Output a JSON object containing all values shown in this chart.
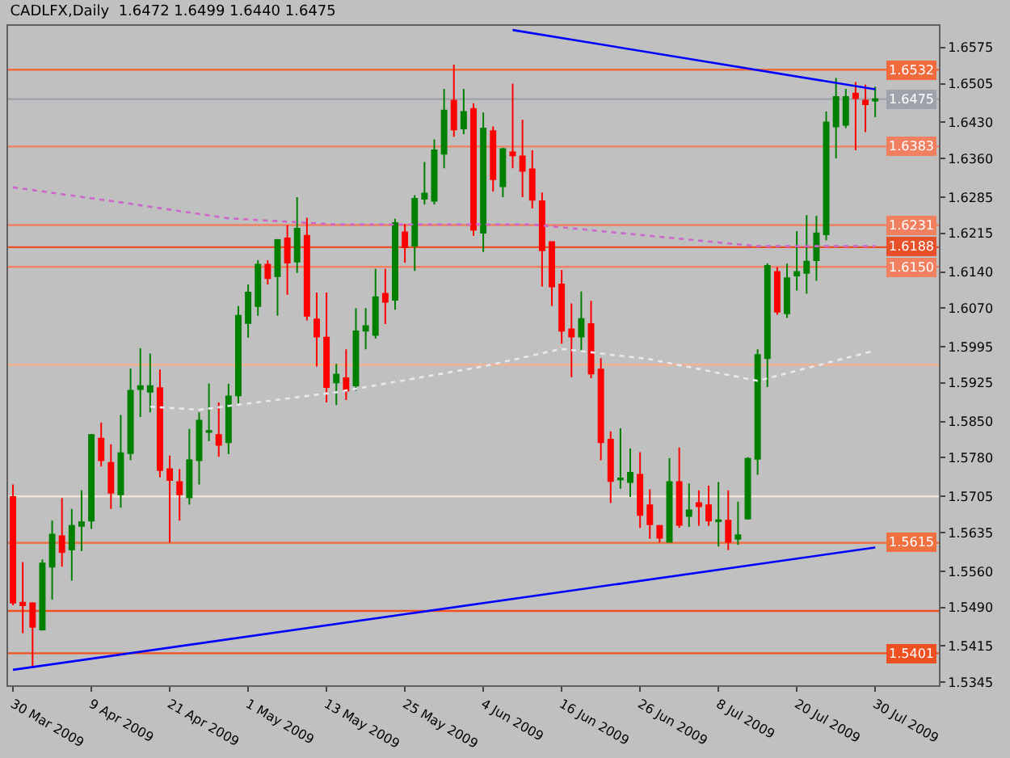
{
  "chart_data": {
    "type": "candlestick",
    "title": "CADLFX,Daily  1.6472 1.6499 1.6440 1.6475",
    "categories": [
      "30 Mar 2009",
      null,
      null,
      null,
      null,
      null,
      null,
      null,
      "9 Apr 2009",
      null,
      null,
      null,
      null,
      null,
      null,
      null,
      "21 Apr 2009",
      null,
      null,
      null,
      null,
      null,
      null,
      null,
      "1 May 2009",
      null,
      null,
      null,
      null,
      null,
      null,
      null,
      "13 May 2009",
      null,
      null,
      null,
      null,
      null,
      null,
      null,
      "25 May 2009",
      null,
      null,
      null,
      null,
      null,
      null,
      null,
      "4 Jun 2009",
      null,
      null,
      null,
      null,
      null,
      null,
      null,
      "16 Jun 2009",
      null,
      null,
      null,
      null,
      null,
      null,
      null,
      "26 Jun 2009",
      null,
      null,
      null,
      null,
      null,
      null,
      null,
      "8 Jul 2009",
      null,
      null,
      null,
      null,
      null,
      null,
      null,
      "20 Jul 2009",
      null,
      null,
      null,
      null,
      null,
      null,
      null,
      "30 Jul 2009",
      null,
      null,
      null,
      null,
      null,
      null
    ],
    "ohlc": [
      [
        1.5704,
        1.5728,
        1.5494,
        1.5499
      ],
      [
        1.5499,
        1.5578,
        1.544,
        1.5494
      ],
      [
        1.5498,
        1.55,
        1.5372,
        1.5452
      ],
      [
        1.5447,
        1.5583,
        1.5445,
        1.5575
      ],
      [
        1.5569,
        1.5658,
        1.5505,
        1.5631
      ],
      [
        1.5628,
        1.5702,
        1.5569,
        1.5597
      ],
      [
        1.5602,
        1.5681,
        1.5542,
        1.5648
      ],
      [
        1.5648,
        1.5717,
        1.5599,
        1.5655
      ],
      [
        1.5658,
        1.5826,
        1.5642,
        1.5824
      ],
      [
        1.5817,
        1.5848,
        1.5763,
        1.5775
      ],
      [
        1.577,
        1.5806,
        1.5681,
        1.5712
      ],
      [
        1.5709,
        1.5863,
        1.5683,
        1.5789
      ],
      [
        1.5789,
        1.5953,
        1.5775,
        1.591
      ],
      [
        1.5913,
        1.5992,
        1.5859,
        1.5919
      ],
      [
        1.5908,
        1.5982,
        1.5868,
        1.5919
      ],
      [
        1.5915,
        1.5951,
        1.5742,
        1.5756
      ],
      [
        1.5758,
        1.5784,
        1.5616,
        1.5737
      ],
      [
        1.5733,
        1.5758,
        1.5658,
        1.5709
      ],
      [
        1.5703,
        1.5836,
        1.5689,
        1.5775
      ],
      [
        1.5775,
        1.5868,
        1.5728,
        1.5852
      ],
      [
        1.583,
        1.5924,
        1.5812,
        1.5832
      ],
      [
        1.5824,
        1.5887,
        1.5782,
        1.5805
      ],
      [
        1.581,
        1.5923,
        1.5787,
        1.5899
      ],
      [
        1.5901,
        1.6074,
        1.5885,
        1.6055
      ],
      [
        1.6041,
        1.6116,
        1.6013,
        1.61
      ],
      [
        1.6074,
        1.6163,
        1.6055,
        1.6154
      ],
      [
        1.6154,
        1.6163,
        1.6116,
        1.6128
      ],
      [
        1.6132,
        1.6204,
        1.6055,
        1.6202
      ],
      [
        1.6205,
        1.6231,
        1.6096,
        1.6158
      ],
      [
        1.616,
        1.6285,
        1.6138,
        1.6224
      ],
      [
        1.621,
        1.6245,
        1.6046,
        1.6055
      ],
      [
        1.6048,
        1.61,
        1.5957,
        1.6015
      ],
      [
        1.6013,
        1.61,
        1.5887,
        1.5917
      ],
      [
        1.5926,
        1.5962,
        1.5882,
        1.5941
      ],
      [
        1.5934,
        1.599,
        1.5892,
        1.591
      ],
      [
        1.592,
        1.607,
        1.591,
        1.6025
      ],
      [
        1.6026,
        1.607,
        1.599,
        1.6035
      ],
      [
        1.6018,
        1.6146,
        1.6011,
        1.6091
      ],
      [
        1.6098,
        1.6146,
        1.6039,
        1.6082
      ],
      [
        1.6086,
        1.6243,
        1.6067,
        1.6235
      ],
      [
        1.6217,
        1.6233,
        1.6158,
        1.6188
      ],
      [
        1.6191,
        1.6289,
        1.6142,
        1.6282
      ],
      [
        1.6282,
        1.6353,
        1.6271,
        1.6292
      ],
      [
        1.6278,
        1.6397,
        1.6271,
        1.6376
      ],
      [
        1.6369,
        1.6495,
        1.6341,
        1.6453
      ],
      [
        1.6472,
        1.6542,
        1.6402,
        1.6416
      ],
      [
        1.6418,
        1.6495,
        1.6407,
        1.645
      ],
      [
        1.6456,
        1.6467,
        1.621,
        1.6222
      ],
      [
        1.6216,
        1.6449,
        1.6179,
        1.6418
      ],
      [
        1.6413,
        1.6422,
        1.6296,
        1.632
      ],
      [
        1.6306,
        1.6381,
        1.6285,
        1.6378
      ],
      [
        1.6372,
        1.6505,
        1.6341,
        1.6366
      ],
      [
        1.6364,
        1.6435,
        1.6285,
        1.6336
      ],
      [
        1.6339,
        1.6376,
        1.6263,
        1.628
      ],
      [
        1.6277,
        1.6294,
        1.6112,
        1.6182
      ],
      [
        1.6198,
        1.6198,
        1.6074,
        1.6112
      ],
      [
        1.6116,
        1.6144,
        1.6001,
        1.6026
      ],
      [
        1.6029,
        1.6079,
        1.5936,
        1.6015
      ],
      [
        1.6015,
        1.6102,
        1.5988,
        1.6049
      ],
      [
        1.6039,
        1.6084,
        1.5934,
        1.5943
      ],
      [
        1.5951,
        1.5973,
        1.5775,
        1.581
      ],
      [
        1.5815,
        1.5831,
        1.5692,
        1.5735
      ],
      [
        1.5738,
        1.5837,
        1.572,
        1.574
      ],
      [
        1.5733,
        1.5798,
        1.5704,
        1.5751
      ],
      [
        1.5747,
        1.5791,
        1.5644,
        1.5669
      ],
      [
        1.5688,
        1.5719,
        1.5623,
        1.5651
      ],
      [
        1.5648,
        1.5648,
        1.5616,
        1.5625
      ],
      [
        1.5617,
        1.5779,
        1.5616,
        1.5733
      ],
      [
        1.5733,
        1.58,
        1.5644,
        1.565
      ],
      [
        1.5667,
        1.573,
        1.5646,
        1.5678
      ],
      [
        1.5692,
        1.5717,
        1.5648,
        1.5686
      ],
      [
        1.5688,
        1.5726,
        1.5648,
        1.5658
      ],
      [
        1.5657,
        1.5733,
        1.5608,
        1.5659
      ],
      [
        1.5658,
        1.5717,
        1.5601,
        1.5617
      ],
      [
        1.5623,
        1.5695,
        1.5611,
        1.563
      ],
      [
        1.5662,
        1.5781,
        1.566,
        1.5778
      ],
      [
        1.5778,
        1.599,
        1.5747,
        1.5979
      ],
      [
        1.5973,
        1.6157,
        1.5917,
        1.6152
      ],
      [
        1.614,
        1.6149,
        1.6057,
        1.6063
      ],
      [
        1.606,
        1.6156,
        1.6051,
        1.6128
      ],
      [
        1.6133,
        1.6219,
        1.6104,
        1.614
      ],
      [
        1.6138,
        1.625,
        1.6098,
        1.616
      ],
      [
        1.6163,
        1.6249,
        1.6123,
        1.6215
      ],
      [
        1.6213,
        1.6451,
        1.6201,
        1.643
      ],
      [
        1.6422,
        1.6516,
        1.636,
        1.6479
      ],
      [
        1.6425,
        1.6495,
        1.6419,
        1.6479
      ],
      [
        1.6486,
        1.6508,
        1.6376,
        1.6477
      ],
      [
        1.6472,
        1.6503,
        1.6411,
        1.6465
      ],
      [
        1.6472,
        1.6499,
        1.644,
        1.6475
      ],
      null,
      null,
      null,
      null,
      null,
      null
    ],
    "colors": [
      "#ff0000",
      "#ff0000",
      "#ff0000",
      "#008000",
      "#008000",
      "#ff0000",
      "#008000",
      "#008000",
      "#008000",
      "#ff0000",
      "#ff0000",
      "#008000",
      "#008000",
      "#008000",
      "#008000",
      "#ff0000",
      "#ff0000",
      "#ff0000",
      "#008000",
      "#008000",
      "#008000",
      "#ff0000",
      "#008000",
      "#008000",
      "#008000",
      "#008000",
      "#ff0000",
      "#008000",
      "#ff0000",
      "#008000",
      "#ff0000",
      "#ff0000",
      "#ff0000",
      "#008000",
      "#ff0000",
      "#008000",
      "#008000",
      "#008000",
      "#ff0000",
      "#008000",
      "#ff0000",
      "#008000",
      "#008000",
      "#008000",
      "#008000",
      "#ff0000",
      "#008000",
      "#ff0000",
      "#008000",
      "#ff0000",
      "#008000",
      "#ff0000",
      "#ff0000",
      "#ff0000",
      "#ff0000",
      "#ff0000",
      "#ff0000",
      "#ff0000",
      "#008000",
      "#ff0000",
      "#ff0000",
      "#ff0000",
      "#008000",
      "#008000",
      "#ff0000",
      "#ff0000",
      "#ff0000",
      "#008000",
      "#ff0000",
      "#008000",
      "#ff0000",
      "#ff0000",
      "#008000",
      "#ff0000",
      "#008000",
      "#008000",
      "#008000",
      "#008000",
      "#ff0000",
      "#008000",
      "#008000",
      "#008000",
      "#008000",
      "#008000",
      "#008000",
      "#008000",
      "#ff0000",
      "#ff0000",
      "#008000",
      null,
      null,
      null,
      null,
      null,
      null
    ],
    "series": [
      {
        "type": "line",
        "color": "#0000ff",
        "line_style": "solid",
        "values": [
          null,
          null,
          null,
          null,
          null,
          null,
          null,
          null,
          null,
          null,
          null,
          null,
          null,
          null,
          null,
          null,
          null,
          null,
          null,
          null,
          null,
          null,
          null,
          null,
          null,
          null,
          null,
          null,
          null,
          null,
          null,
          null,
          null,
          null,
          null,
          null,
          null,
          null,
          null,
          null,
          null,
          null,
          null,
          null,
          null,
          null,
          null,
          null,
          null,
          null,
          null,
          1.6609,
          null,
          null,
          null,
          null,
          null,
          null,
          null,
          null,
          null,
          null,
          null,
          null,
          null,
          null,
          null,
          null,
          null,
          null,
          null,
          null,
          null,
          null,
          null,
          null,
          null,
          null,
          null,
          null,
          null,
          null,
          null,
          null,
          null,
          null,
          null,
          null,
          1.6494,
          null,
          null,
          null,
          null,
          null,
          null
        ]
      },
      {
        "type": "line",
        "color": "#0000ff",
        "line_style": "solid",
        "values": [
          1.5369,
          null,
          null,
          null,
          null,
          null,
          null,
          null,
          null,
          null,
          null,
          null,
          null,
          null,
          null,
          null,
          null,
          null,
          null,
          null,
          null,
          null,
          null,
          null,
          null,
          null,
          null,
          null,
          null,
          null,
          null,
          null,
          null,
          null,
          null,
          null,
          null,
          null,
          null,
          null,
          null,
          null,
          null,
          null,
          null,
          null,
          null,
          null,
          null,
          null,
          null,
          null,
          null,
          null,
          null,
          null,
          null,
          null,
          null,
          null,
          null,
          null,
          null,
          null,
          null,
          null,
          null,
          null,
          null,
          null,
          null,
          null,
          null,
          null,
          null,
          null,
          null,
          null,
          null,
          null,
          null,
          null,
          null,
          null,
          null,
          null,
          null,
          null,
          1.5606,
          null,
          null,
          null,
          null,
          null,
          null
        ]
      },
      {
        "type": "line",
        "color": "#cc66cc",
        "line_style": "dotted",
        "values": [
          1.6304,
          null,
          null,
          null,
          null,
          null,
          null,
          null,
          null,
          null,
          null,
          1.6275,
          null,
          null,
          null,
          null,
          null,
          null,
          null,
          null,
          null,
          null,
          1.6244,
          null,
          null,
          null,
          null,
          null,
          null,
          null,
          null,
          null,
          null,
          1.6232,
          null,
          null,
          null,
          null,
          null,
          null,
          null,
          null,
          null,
          null,
          null,
          null,
          null,
          null,
          null,
          null,
          null,
          null,
          null,
          1.6232,
          null,
          null,
          null,
          null,
          null,
          null,
          null,
          null,
          null,
          null,
          null,
          1.621,
          null,
          null,
          null,
          null,
          null,
          null,
          null,
          null,
          null,
          null,
          1.619,
          null,
          null,
          null,
          null,
          null,
          null,
          null,
          null,
          null,
          null,
          null,
          1.619,
          null,
          null,
          null,
          null,
          null,
          null
        ]
      },
      {
        "type": "line",
        "color": "#e8e8f0",
        "line_style": "dotted",
        "values": [
          null,
          null,
          null,
          null,
          null,
          null,
          null,
          null,
          null,
          null,
          null,
          null,
          null,
          null,
          1.5879,
          null,
          null,
          null,
          null,
          1.5873,
          null,
          null,
          null,
          null,
          null,
          null,
          null,
          null,
          null,
          null,
          null,
          null,
          null,
          1.5907,
          null,
          null,
          null,
          null,
          null,
          null,
          null,
          null,
          null,
          null,
          null,
          null,
          null,
          null,
          1.5957,
          null,
          null,
          null,
          null,
          null,
          null,
          null,
          1.5991,
          null,
          null,
          null,
          null,
          null,
          null,
          null,
          null,
          1.5971,
          null,
          null,
          null,
          null,
          null,
          null,
          null,
          null,
          null,
          null,
          1.5929,
          null,
          null,
          null,
          null,
          null,
          null,
          null,
          null,
          null,
          null,
          null,
          1.5988,
          null,
          null,
          null,
          null,
          null,
          null
        ]
      }
    ],
    "ylim": [
      1.5339,
      1.6617
    ],
    "yticks": [
      1.6575,
      1.6505,
      {
        "value": 1.643,
        "label": "1.6430"
      },
      {
        "value": 1.636,
        "label": "1.6360"
      },
      1.6285,
      1.6215,
      {
        "value": 1.614,
        "label": "1.6140"
      },
      {
        "value": 1.607,
        "label": "1.6070"
      },
      1.5995,
      1.5925,
      {
        "value": 1.585,
        "label": "1.5850"
      },
      {
        "value": 1.578,
        "label": "1.5780"
      },
      1.5705,
      1.5635,
      {
        "value": 1.556,
        "label": "1.5560"
      },
      {
        "value": 1.549,
        "label": "1.5490"
      },
      1.5415,
      1.5345
    ],
    "ref_lines": [
      {
        "axis": "y",
        "value": 1.6532,
        "label": "1.6532",
        "color": "#f06a3c"
      },
      {
        "axis": "y",
        "value": 1.6475,
        "label": "1.6475",
        "color": "#9ca3ab"
      },
      {
        "axis": "y",
        "value": 1.6383,
        "label": "1.6383",
        "color": "#f08060"
      },
      {
        "axis": "y",
        "value": 1.6231,
        "label": "1.6231",
        "color": "#f08060"
      },
      {
        "axis": "y",
        "value": 1.6188,
        "label": "1.6188",
        "color": "#e8502a"
      },
      {
        "axis": "y",
        "value": 1.615,
        "label": "1.6150",
        "color": "#f08060"
      },
      {
        "axis": "y",
        "value": 1.596,
        "label": null,
        "color": "#f4b090"
      },
      {
        "axis": "y",
        "value": 1.5705,
        "label": null,
        "color": "#f0e4d8"
      },
      {
        "axis": "y",
        "value": 1.5615,
        "label": "1.5615",
        "color": "#f07040"
      },
      {
        "axis": "y",
        "value": 1.5483,
        "label": null,
        "color": "#f05020"
      },
      {
        "axis": "y",
        "value": 1.5401,
        "label": "1.5401",
        "color": "#f05020"
      }
    ],
    "grid": false
  }
}
